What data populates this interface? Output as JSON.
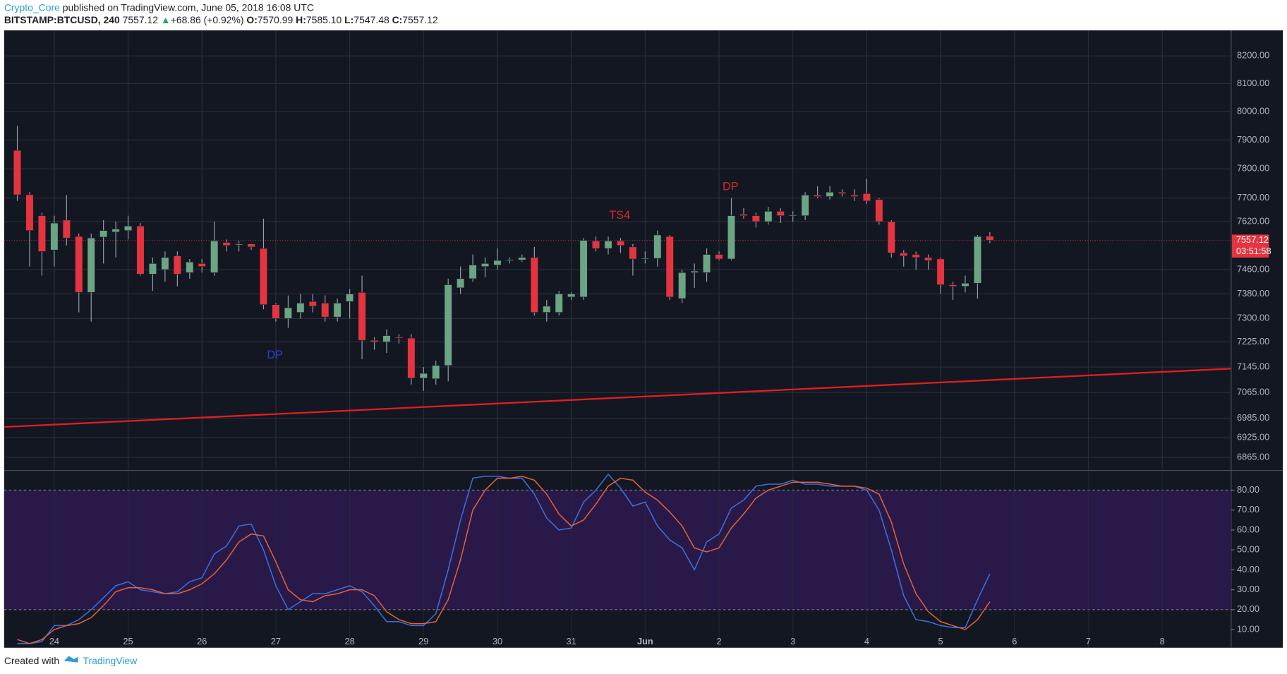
{
  "header": {
    "author": "Crypto_Core",
    "published": " published on TradingView.com, June 05, 2018 16:08 UTC",
    "symbol": "BITSTAMP:BTCUSD, 240",
    "price": "7557.12",
    "arrow": "▲",
    "change": "+68.86 (+0.92%)",
    "o_label": "O:",
    "o": "7570.99",
    "h_label": "H:",
    "h": "7585.10",
    "l_label": "L:",
    "l": "7547.48",
    "c_label": "C:",
    "c": "7557.12"
  },
  "footer": {
    "created": "Created with",
    "brand": "TradingView"
  },
  "chart_data": [
    {
      "type": "candlestick",
      "log_scale": true,
      "grid": true,
      "ylim": [
        6828,
        8290
      ],
      "yticks": [
        {
          "value": 8200,
          "label": "8200.00"
        },
        {
          "value": 8100,
          "label": "8100.00"
        },
        {
          "value": 8000,
          "label": "8000.00"
        },
        {
          "value": 7900,
          "label": "7900.00"
        },
        {
          "value": 7800,
          "label": "7800.00"
        },
        {
          "value": 7700,
          "label": "7700.00"
        },
        {
          "value": 7620,
          "label": "7620.00"
        },
        {
          "value": 7460,
          "label": "7460.00"
        },
        {
          "value": 7380,
          "label": "7380.00"
        },
        {
          "value": 7300,
          "label": "7300.00"
        },
        {
          "value": 7225,
          "label": "7225.00"
        },
        {
          "value": 7145,
          "label": "7145.00"
        },
        {
          "value": 7065,
          "label": "7065.00"
        },
        {
          "value": 6985,
          "label": "6985.00"
        },
        {
          "value": 6925,
          "label": "6925.00"
        },
        {
          "value": 6865,
          "label": "6865.00"
        }
      ],
      "xlim": [
        -1.07,
        98.6
      ],
      "xticks": [
        {
          "value": 3,
          "label": "24"
        },
        {
          "value": 9,
          "label": "25"
        },
        {
          "value": 15,
          "label": "26"
        },
        {
          "value": 21,
          "label": "27"
        },
        {
          "value": 27,
          "label": "28"
        },
        {
          "value": 33,
          "label": "29"
        },
        {
          "value": 39,
          "label": "30"
        },
        {
          "value": 45,
          "label": "31"
        },
        {
          "value": 51,
          "label": "Jun"
        },
        {
          "value": 57,
          "label": "2"
        },
        {
          "value": 63,
          "label": "3"
        },
        {
          "value": 69,
          "label": "4"
        },
        {
          "value": 75,
          "label": "5"
        },
        {
          "value": 81,
          "label": "6"
        },
        {
          "value": 87,
          "label": "7"
        },
        {
          "value": 93,
          "label": "8"
        }
      ],
      "up_color": "#6ba583",
      "down_color": "#e5343f",
      "open": [
        7864,
        7711,
        7640,
        7525,
        7625,
        7570,
        7385,
        7568,
        7585,
        7590,
        7605,
        7445,
        7460,
        7505,
        7450,
        7480,
        7450,
        7550,
        7542,
        7545,
        7530,
        7345,
        7300,
        7320,
        7355,
        7350,
        7305,
        7355,
        7385,
        7230,
        7225,
        7240,
        7237,
        7110,
        7108,
        7150,
        7400,
        7430,
        7470,
        7475,
        7490,
        7492,
        7500,
        7320,
        7320,
        7370,
        7370,
        7555,
        7530,
        7555,
        7535,
        7495,
        7497,
        7570,
        7365,
        7450,
        7450,
        7510,
        7495,
        7645,
        7640,
        7620,
        7655,
        7640,
        7640,
        7710,
        7705,
        7720,
        7710,
        7715,
        7695,
        7620,
        7515,
        7510,
        7500,
        7495,
        7410,
        7405,
        7415,
        7570.99
      ],
      "high": [
        7950,
        7720,
        7650,
        7640,
        7710,
        7580,
        7580,
        7625,
        7620,
        7640,
        7615,
        7500,
        7520,
        7520,
        7495,
        7495,
        7620,
        7560,
        7555,
        7545,
        7630,
        7350,
        7375,
        7380,
        7380,
        7375,
        7365,
        7395,
        7440,
        7240,
        7265,
        7250,
        7250,
        7145,
        7165,
        7430,
        7470,
        7510,
        7500,
        7530,
        7500,
        7510,
        7535,
        7360,
        7390,
        7385,
        7565,
        7570,
        7570,
        7565,
        7545,
        7520,
        7590,
        7575,
        7460,
        7480,
        7530,
        7520,
        7700,
        7665,
        7650,
        7670,
        7665,
        7655,
        7720,
        7740,
        7740,
        7730,
        7730,
        7765,
        7700,
        7625,
        7525,
        7520,
        7510,
        7500,
        7420,
        7440,
        7575,
        7585.1
      ],
      "low": [
        7690,
        7470,
        7440,
        7470,
        7540,
        7320,
        7290,
        7480,
        7500,
        7560,
        7440,
        7390,
        7420,
        7405,
        7430,
        7450,
        7440,
        7520,
        7520,
        7525,
        7330,
        7290,
        7270,
        7300,
        7320,
        7290,
        7290,
        7300,
        7170,
        7200,
        7190,
        7220,
        7090,
        7070,
        7090,
        7100,
        7380,
        7420,
        7435,
        7460,
        7480,
        7485,
        7310,
        7290,
        7310,
        7360,
        7360,
        7520,
        7510,
        7515,
        7440,
        7480,
        7470,
        7360,
        7350,
        7400,
        7420,
        7490,
        7490,
        7630,
        7600,
        7610,
        7615,
        7620,
        7625,
        7700,
        7695,
        7705,
        7690,
        7680,
        7610,
        7500,
        7470,
        7460,
        7460,
        7380,
        7360,
        7385,
        7365,
        7547.48
      ],
      "close": [
        7711,
        7590,
        7520,
        7615,
        7565,
        7385,
        7565,
        7590,
        7595,
        7605,
        7445,
        7480,
        7500,
        7445,
        7485,
        7470,
        7555,
        7540,
        7545,
        7535,
        7345,
        7300,
        7335,
        7350,
        7340,
        7305,
        7350,
        7380,
        7230,
        7225,
        7245,
        7237,
        7110,
        7125,
        7150,
        7410,
        7430,
        7475,
        7480,
        7490,
        7493,
        7500,
        7320,
        7340,
        7380,
        7380,
        7557,
        7530,
        7555,
        7540,
        7495,
        7497,
        7575,
        7370,
        7450,
        7455,
        7510,
        7495,
        7640,
        7640,
        7620,
        7655,
        7640,
        7642,
        7710,
        7705,
        7720,
        7715,
        7705,
        7690,
        7620,
        7515,
        7505,
        7500,
        7490,
        7410,
        7405,
        7415,
        7570,
        7557.12
      ],
      "trendline": {
        "x": [
          -1.07,
          98.6
        ],
        "values": [
          6958,
          7140
        ],
        "color": "#e01e1e"
      },
      "annotations": [
        {
          "text": "DP",
          "color": "#2a3fd6"
        },
        {
          "text": "TS4",
          "color": "#d62a2a"
        },
        {
          "text": "DP",
          "color": "#d62a2a"
        }
      ],
      "last_price": {
        "value": 7557.12,
        "label": "7557.12"
      },
      "countdown": "03:51:58"
    },
    {
      "type": "line",
      "ylim": [
        1.3,
        89.5
      ],
      "yticks": [
        {
          "value": 80,
          "label": "80.00"
        },
        {
          "value": 70,
          "label": "70.00"
        },
        {
          "value": 60,
          "label": "60.00"
        },
        {
          "value": 50,
          "label": "50.00"
        },
        {
          "value": 40,
          "label": "40.00"
        },
        {
          "value": 30,
          "label": "30.00"
        },
        {
          "value": 20,
          "label": "20.00"
        },
        {
          "value": 10,
          "label": "10.00"
        }
      ],
      "band": [
        20,
        80
      ],
      "series": [
        {
          "color": "#3d6fe0",
          "values": [
            3,
            3,
            4,
            12,
            12,
            15,
            20,
            26,
            32,
            34,
            30,
            29,
            28,
            29,
            34,
            36,
            48,
            52,
            62,
            63,
            50,
            32,
            20,
            24,
            28,
            28,
            30,
            32,
            29,
            22,
            14,
            14,
            12,
            12,
            18,
            40,
            65,
            86,
            87,
            87,
            86,
            86,
            78,
            66,
            60,
            61,
            74,
            80,
            88,
            81,
            72,
            74,
            62,
            55,
            51,
            40,
            54,
            58,
            71,
            75,
            82,
            83,
            83,
            85,
            83,
            83,
            82,
            82,
            82,
            80,
            70,
            50,
            27,
            15,
            14,
            12,
            11,
            11,
            25,
            38
          ]
        },
        {
          "color": "#e5603a",
          "values": [
            5,
            3,
            5,
            10,
            12,
            13,
            16,
            22,
            29,
            31,
            31,
            30,
            28,
            28,
            30,
            33,
            38,
            45,
            54,
            58,
            57,
            44,
            30,
            25,
            24,
            27,
            28,
            30,
            30,
            27,
            19,
            15,
            13,
            13,
            14,
            25,
            45,
            70,
            80,
            86,
            86,
            87,
            85,
            78,
            68,
            62,
            65,
            73,
            82,
            86,
            85,
            79,
            75,
            69,
            62,
            51,
            49,
            51,
            61,
            68,
            76,
            80,
            82,
            84,
            84,
            84,
            83,
            82,
            82,
            81,
            78,
            64,
            43,
            28,
            19,
            14,
            12,
            10,
            15,
            24
          ]
        }
      ]
    }
  ]
}
